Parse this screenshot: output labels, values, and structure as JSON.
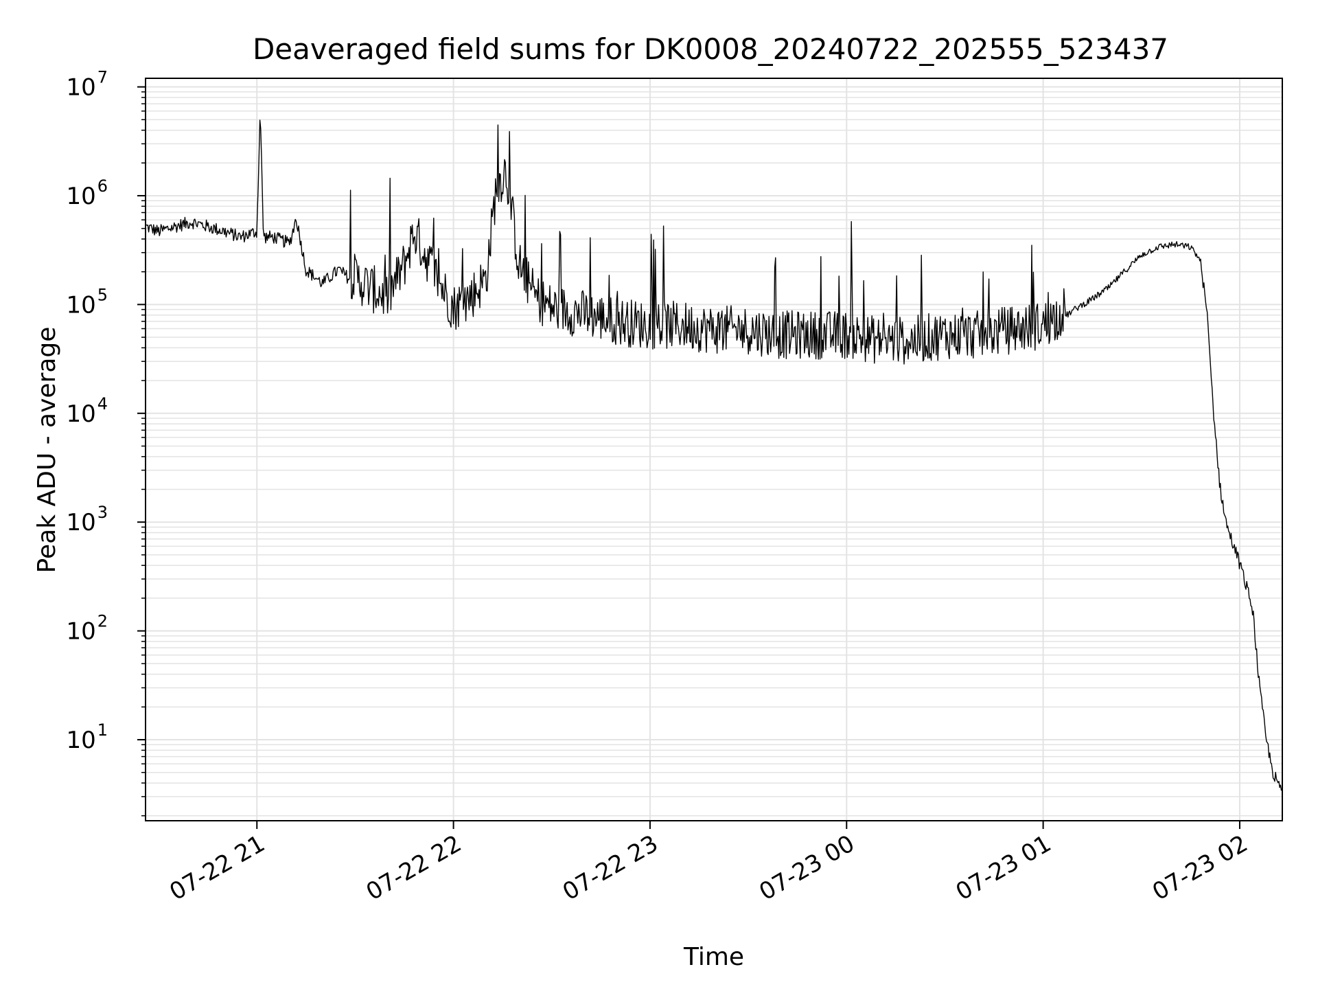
{
  "chart_data": {
    "type": "line",
    "title": "Deaveraged field sums for DK0008_20240722_202555_523437",
    "xlabel": "Time",
    "ylabel": "Peak ADU - average",
    "y_scale": "log",
    "ylim": [
      1.8,
      12000000
    ],
    "xlim": [
      "2024-07-22 20:26",
      "2024-07-23 02:13"
    ],
    "grid": true,
    "line_color": "#000000",
    "grid_color": "#e3e3e3",
    "x_ticks": [
      {
        "value": "2024-07-22 21:00",
        "label": "07-22 21"
      },
      {
        "value": "2024-07-22 22:00",
        "label": "07-22 22"
      },
      {
        "value": "2024-07-22 23:00",
        "label": "07-22 23"
      },
      {
        "value": "2024-07-23 00:00",
        "label": "07-23 00"
      },
      {
        "value": "2024-07-23 01:00",
        "label": "07-23 01"
      },
      {
        "value": "2024-07-23 02:00",
        "label": "07-23 02"
      }
    ],
    "y_ticks": [
      {
        "value": 10,
        "base": "10",
        "exp": "1"
      },
      {
        "value": 100,
        "base": "10",
        "exp": "2"
      },
      {
        "value": 1000,
        "base": "10",
        "exp": "3"
      },
      {
        "value": 10000,
        "base": "10",
        "exp": "4"
      },
      {
        "value": 100000,
        "base": "10",
        "exp": "5"
      },
      {
        "value": 1000000,
        "base": "10",
        "exp": "6"
      },
      {
        "value": 10000000,
        "base": "10",
        "exp": "7"
      }
    ],
    "series": [
      {
        "x": [
          "2024-07-22 20:26",
          "2024-07-22 20:30",
          "2024-07-22 20:35",
          "2024-07-22 20:40",
          "2024-07-22 20:45",
          "2024-07-22 20:50",
          "2024-07-22 20:55",
          "2024-07-22 21:00",
          "2024-07-22 21:01",
          "2024-07-22 21:02",
          "2024-07-22 21:05",
          "2024-07-22 21:10",
          "2024-07-22 21:12",
          "2024-07-22 21:15",
          "2024-07-22 21:20",
          "2024-07-22 21:25",
          "2024-07-22 21:30",
          "2024-07-22 21:35",
          "2024-07-22 21:40",
          "2024-07-22 21:45",
          "2024-07-22 21:48",
          "2024-07-22 21:50",
          "2024-07-22 21:55",
          "2024-07-22 22:00",
          "2024-07-22 22:05",
          "2024-07-22 22:10",
          "2024-07-22 22:13",
          "2024-07-22 22:16",
          "2024-07-22 22:20",
          "2024-07-22 22:25",
          "2024-07-22 22:30",
          "2024-07-22 22:40",
          "2024-07-22 22:50",
          "2024-07-22 23:00",
          "2024-07-22 23:10",
          "2024-07-22 23:20",
          "2024-07-22 23:30",
          "2024-07-22 23:40",
          "2024-07-22 23:50",
          "2024-07-23 00:00",
          "2024-07-23 00:10",
          "2024-07-23 00:20",
          "2024-07-23 00:30",
          "2024-07-23 00:40",
          "2024-07-23 00:50",
          "2024-07-23 01:00",
          "2024-07-23 01:05",
          "2024-07-23 01:10",
          "2024-07-23 01:15",
          "2024-07-23 01:20",
          "2024-07-23 01:25",
          "2024-07-23 01:30",
          "2024-07-23 01:35",
          "2024-07-23 01:40",
          "2024-07-23 01:45",
          "2024-07-23 01:48",
          "2024-07-23 01:50",
          "2024-07-23 01:52",
          "2024-07-23 01:54",
          "2024-07-23 01:56",
          "2024-07-23 01:58",
          "2024-07-23 02:00",
          "2024-07-23 02:02",
          "2024-07-23 02:04",
          "2024-07-23 02:06",
          "2024-07-23 02:08",
          "2024-07-23 02:10",
          "2024-07-23 02:12",
          "2024-07-23 02:13"
        ],
        "y": [
          500000,
          450000,
          500000,
          550000,
          500000,
          450000,
          400000,
          450000,
          6000000,
          400000,
          400000,
          350000,
          600000,
          200000,
          150000,
          200000,
          150000,
          120000,
          100000,
          200000,
          400000,
          300000,
          150000,
          80000,
          100000,
          150000,
          1000000,
          1500000,
          200000,
          100000,
          80000,
          70000,
          60000,
          55000,
          55000,
          50000,
          50000,
          45000,
          45000,
          45000,
          40000,
          40000,
          45000,
          45000,
          50000,
          55000,
          70000,
          90000,
          110000,
          140000,
          200000,
          280000,
          330000,
          350000,
          330000,
          250000,
          80000,
          10000,
          2000,
          900,
          600,
          400,
          250,
          150,
          30,
          10,
          5,
          3.5,
          3.5
        ]
      }
    ]
  }
}
